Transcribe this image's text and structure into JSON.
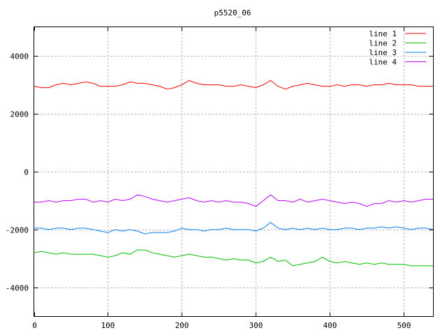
{
  "chart_data": {
    "type": "line",
    "title": "p5520_06",
    "xlabel": "",
    "ylabel": "",
    "xlim": [
      0,
      540
    ],
    "ylim": [
      -5000,
      5000
    ],
    "x_ticks": [
      0,
      100,
      200,
      300,
      400,
      500
    ],
    "y_ticks": [
      -4000,
      -2000,
      0,
      2000,
      4000
    ],
    "grid": true,
    "legend_position": "top-right",
    "x": [
      0,
      10,
      20,
      30,
      40,
      50,
      60,
      70,
      80,
      90,
      100,
      110,
      120,
      130,
      140,
      150,
      160,
      170,
      180,
      190,
      200,
      210,
      220,
      230,
      240,
      250,
      260,
      270,
      280,
      290,
      300,
      310,
      320,
      330,
      340,
      350,
      360,
      370,
      380,
      390,
      400,
      410,
      420,
      430,
      440,
      450,
      460,
      470,
      480,
      490,
      500,
      510,
      520,
      530,
      540
    ],
    "series": [
      {
        "name": "line 1",
        "color": "#ff0000",
        "values": [
          2950,
          2900,
          2900,
          3000,
          3050,
          3000,
          3050,
          3100,
          3050,
          2950,
          2950,
          2950,
          3000,
          3100,
          3050,
          3050,
          3000,
          2950,
          2850,
          2900,
          3000,
          3150,
          3050,
          3000,
          3000,
          3000,
          2950,
          2950,
          3000,
          2950,
          2900,
          3000,
          3150,
          2950,
          2850,
          2950,
          3000,
          3050,
          3000,
          2950,
          2950,
          3000,
          2950,
          3000,
          3000,
          2950,
          3000,
          3000,
          3050,
          3000,
          3000,
          3000,
          2950,
          2950,
          2950
        ]
      },
      {
        "name": "line 2",
        "color": "#00c000",
        "values": [
          -2800,
          -2750,
          -2800,
          -2850,
          -2800,
          -2850,
          -2850,
          -2850,
          -2850,
          -2900,
          -2950,
          -2900,
          -2800,
          -2850,
          -2700,
          -2700,
          -2800,
          -2850,
          -2900,
          -2950,
          -2900,
          -2850,
          -2900,
          -2950,
          -2950,
          -3000,
          -3050,
          -3000,
          -3050,
          -3050,
          -3150,
          -3100,
          -2950,
          -3100,
          -3050,
          -3250,
          -3200,
          -3150,
          -3100,
          -2950,
          -3100,
          -3150,
          -3100,
          -3150,
          -3200,
          -3150,
          -3200,
          -3150,
          -3200,
          -3200,
          -3200,
          -3250,
          -3250,
          -3250,
          -3250
        ]
      },
      {
        "name": "line 3",
        "color": "#0080ff",
        "values": [
          -1950,
          -1950,
          -2000,
          -1950,
          -1950,
          -2000,
          -1950,
          -1950,
          -2000,
          -2050,
          -2100,
          -2000,
          -2050,
          -2000,
          -2050,
          -2150,
          -2100,
          -2100,
          -2100,
          -2050,
          -1950,
          -2000,
          -2000,
          -2050,
          -2000,
          -2000,
          -1950,
          -2000,
          -2000,
          -2000,
          -2050,
          -1950,
          -1750,
          -1950,
          -2000,
          -1950,
          -2000,
          -1950,
          -2000,
          -1950,
          -2000,
          -2000,
          -1950,
          -1950,
          -2000,
          -1950,
          -1950,
          -1900,
          -1950,
          -1900,
          -1950,
          -2000,
          -1950,
          -1950,
          -2000
        ]
      },
      {
        "name": "line 4",
        "color": "#c000ff",
        "values": [
          -1050,
          -1050,
          -1000,
          -1050,
          -1000,
          -1000,
          -950,
          -950,
          -1050,
          -1000,
          -1050,
          -950,
          -1000,
          -950,
          -800,
          -850,
          -950,
          -1000,
          -1050,
          -1000,
          -950,
          -900,
          -1000,
          -1050,
          -1000,
          -1050,
          -1000,
          -1050,
          -1050,
          -1100,
          -1200,
          -1000,
          -800,
          -1000,
          -1000,
          -1050,
          -950,
          -1050,
          -1000,
          -950,
          -1000,
          -1050,
          -1100,
          -1050,
          -1100,
          -1200,
          -1100,
          -1100,
          -1000,
          -1050,
          -1000,
          -1050,
          -1000,
          -950,
          -950
        ]
      }
    ]
  }
}
